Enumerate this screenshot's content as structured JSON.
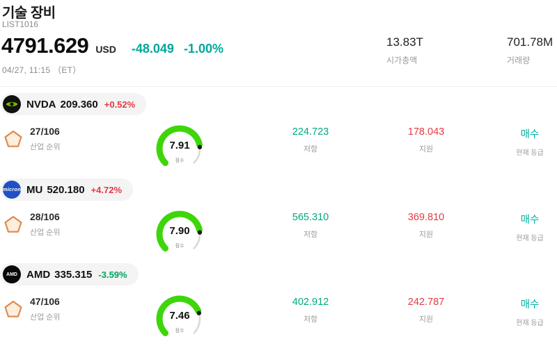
{
  "header": {
    "title": "기술 장비",
    "list_id": "LIST1016",
    "price": "4791.629",
    "currency": "USD",
    "change_abs": "-48.049",
    "change_pct": "-1.00%",
    "datetime": "04/27, 11:15 （ET）",
    "market_cap": "13.83T",
    "market_cap_label": "시가총액",
    "volume": "701.78M",
    "volume_label": "거래량"
  },
  "labels": {
    "rank_label": "산업 순위",
    "score_label": "점수",
    "resistance_label": "저항",
    "support_label": "지원",
    "rating_label": "현재 등급"
  },
  "colors": {
    "up_red": "#e23a41",
    "down_green": "#00a25d",
    "header_change_teal": "#00a79b",
    "resistance_green": "#00a87e",
    "support_red": "#e23a41",
    "buy_teal": "#00b0a4",
    "gauge_green": "#3ed60a",
    "gauge_rest": "#d9d9d9",
    "gauge_dot": "#1c1c1c",
    "nvidia_green": "#76b900"
  },
  "stocks": [
    {
      "ticker": "NVDA",
      "price": "209.360",
      "change": "+0.52%",
      "change_dir": "up",
      "logo_text": "",
      "rank": "27/106",
      "score": "7.91",
      "score_value": 7.91,
      "resistance": "224.723",
      "support": "178.043",
      "rating": "매수"
    },
    {
      "ticker": "MU",
      "price": "520.180",
      "change": "+4.72%",
      "change_dir": "up",
      "logo_text": "micron",
      "rank": "28/106",
      "score": "7.90",
      "score_value": 7.9,
      "resistance": "565.310",
      "support": "369.810",
      "rating": "매수"
    },
    {
      "ticker": "AMD",
      "price": "335.315",
      "change": "-3.59%",
      "change_dir": "down",
      "logo_text": "AMD",
      "rank": "47/106",
      "score": "7.46",
      "score_value": 7.46,
      "resistance": "402.912",
      "support": "242.787",
      "rating": "매수"
    }
  ]
}
